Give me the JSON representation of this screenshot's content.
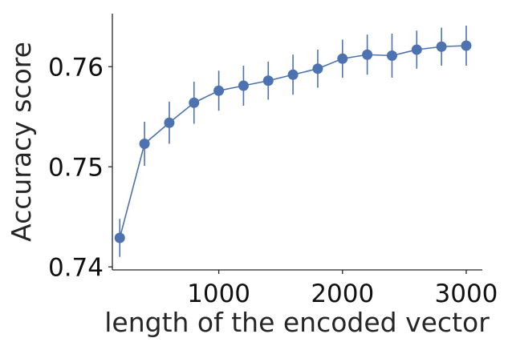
{
  "chart_data": {
    "type": "line",
    "title": "",
    "xlabel": "length of the encoded vector",
    "ylabel": "Accuracy score",
    "xlim": [
      140,
      3130
    ],
    "ylim": [
      0.7397,
      0.7653
    ],
    "xticks": [
      1000,
      2000,
      3000
    ],
    "yticks": [
      0.74,
      0.75,
      0.76
    ],
    "xtick_labels": [
      "1000",
      "2000",
      "3000"
    ],
    "ytick_labels": [
      "0.74",
      "0.75",
      "0.76"
    ],
    "grid": false,
    "legend": "none",
    "series": [
      {
        "color": "#4c72b0",
        "x": [
          200,
          400,
          600,
          800,
          1000,
          1200,
          1400,
          1600,
          1800,
          2000,
          2200,
          2400,
          2600,
          2800,
          3000
        ],
        "y": [
          0.7429,
          0.7523,
          0.7544,
          0.7564,
          0.7576,
          0.7581,
          0.7586,
          0.7592,
          0.7598,
          0.7608,
          0.7612,
          0.7611,
          0.7617,
          0.762,
          0.7621
        ],
        "error": [
          0.0019,
          0.0022,
          0.0021,
          0.0021,
          0.002,
          0.002,
          0.0019,
          0.002,
          0.0019,
          0.0019,
          0.002,
          0.0022,
          0.0019,
          0.0019,
          0.002
        ]
      }
    ]
  }
}
